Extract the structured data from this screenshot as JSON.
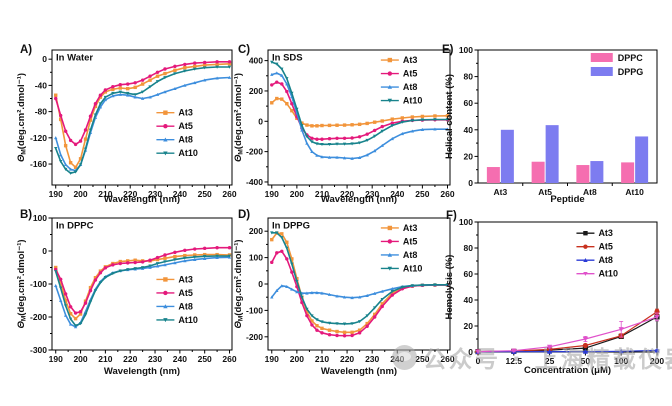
{
  "watermark": {
    "logo": "grey-circle-logo",
    "text": "公众号 · 上海精载仪器资讯"
  },
  "chart_data": [
    {
      "panel": "A",
      "label": "A)",
      "type": "line",
      "title": "In Water",
      "x": {
        "label": "Wavelength (nm)",
        "min": 188.5,
        "max": 261,
        "ticks": [
          190,
          200,
          210,
          220,
          230,
          240,
          250,
          260
        ],
        "values": [
          190,
          192,
          194,
          196,
          198,
          200,
          202,
          204,
          206,
          208,
          210,
          213,
          216,
          219,
          222,
          225,
          228,
          231,
          234,
          238,
          242,
          246,
          250,
          255,
          260
        ]
      },
      "y": {
        "label_parts": {
          "sym": "Θ",
          "sub": "M",
          "units": "(deg.cm².dmol⁻¹)"
        },
        "min": -192,
        "max": 14,
        "ticks": [
          0,
          -40,
          -80,
          -120,
          -160
        ]
      },
      "legend": {
        "fx": 0.58,
        "fy": 0.42
      },
      "series": [
        {
          "name": "At3",
          "color": "#F2953B",
          "marker": "square",
          "values": [
            -55,
            -92,
            -132,
            -158,
            -165,
            -152,
            -122,
            -93,
            -72,
            -58,
            -50,
            -46,
            -44,
            -45,
            -43,
            -38,
            -32,
            -26,
            -22,
            -17,
            -13,
            -11,
            -9,
            -8,
            -7
          ]
        },
        {
          "name": "At5",
          "color": "#E4197B",
          "marker": "circle",
          "values": [
            -60,
            -86,
            -110,
            -124,
            -130,
            -125,
            -108,
            -87,
            -68,
            -55,
            -47,
            -42,
            -39,
            -38,
            -36,
            -32,
            -26,
            -20,
            -15,
            -11,
            -8,
            -6,
            -5,
            -4,
            -4
          ]
        },
        {
          "name": "At8",
          "color": "#3D8EDD",
          "marker": "triangle",
          "values": [
            -120,
            -146,
            -161,
            -168,
            -170,
            -161,
            -139,
            -112,
            -89,
            -73,
            -62,
            -56,
            -54,
            -55,
            -58,
            -60,
            -58,
            -54,
            -50,
            -45,
            -40,
            -36,
            -32,
            -29,
            -28
          ]
        },
        {
          "name": "At10",
          "color": "#18838C",
          "marker": "tridown",
          "values": [
            -136,
            -156,
            -168,
            -174,
            -172,
            -161,
            -137,
            -108,
            -85,
            -68,
            -58,
            -52,
            -50,
            -52,
            -54,
            -50,
            -42,
            -34,
            -28,
            -22,
            -18,
            -15,
            -13,
            -12,
            -12
          ]
        }
      ]
    },
    {
      "panel": "B",
      "label": "B)",
      "type": "line",
      "title": "In DPPC",
      "x": {
        "label": "Wavelength (nm)",
        "min": 188.5,
        "max": 261,
        "ticks": [
          190,
          200,
          210,
          220,
          230,
          240,
          250,
          260
        ],
        "values": [
          190,
          192,
          194,
          196,
          198,
          200,
          202,
          204,
          206,
          208,
          210,
          213,
          216,
          219,
          222,
          225,
          228,
          231,
          234,
          238,
          242,
          246,
          250,
          255,
          260
        ]
      },
      "y": {
        "label_parts": {
          "sym": "Θ",
          "sub": "M",
          "units": "(deg.cm².dmol⁻¹)"
        },
        "min": -300,
        "max": 100,
        "ticks": [
          100,
          0,
          -100,
          -200,
          -300
        ]
      },
      "legend": {
        "fx": 0.58,
        "fy": 0.42
      },
      "series": [
        {
          "name": "At3",
          "color": "#F2953B",
          "marker": "square",
          "values": [
            -50,
            -96,
            -150,
            -190,
            -205,
            -191,
            -152,
            -111,
            -81,
            -61,
            -48,
            -38,
            -32,
            -30,
            -28,
            -30,
            -30,
            -26,
            -22,
            -17,
            -14,
            -12,
            -11,
            -11,
            -12
          ]
        },
        {
          "name": "At5",
          "color": "#E4197B",
          "marker": "circle",
          "values": [
            -56,
            -86,
            -130,
            -169,
            -188,
            -184,
            -158,
            -120,
            -88,
            -66,
            -51,
            -42,
            -38,
            -36,
            -35,
            -33,
            -28,
            -20,
            -12,
            -4,
            2,
            6,
            8,
            10,
            10
          ]
        },
        {
          "name": "At8",
          "color": "#3D8EDD",
          "marker": "triangle",
          "values": [
            -105,
            -150,
            -195,
            -222,
            -230,
            -217,
            -184,
            -148,
            -116,
            -93,
            -78,
            -66,
            -60,
            -57,
            -55,
            -53,
            -50,
            -46,
            -42,
            -36,
            -30,
            -26,
            -23,
            -20,
            -19
          ]
        },
        {
          "name": "At10",
          "color": "#18838C",
          "marker": "tridown",
          "values": [
            -62,
            -112,
            -166,
            -206,
            -226,
            -220,
            -193,
            -154,
            -120,
            -96,
            -80,
            -68,
            -60,
            -56,
            -53,
            -50,
            -45,
            -38,
            -32,
            -26,
            -21,
            -18,
            -16,
            -15,
            -15
          ]
        }
      ]
    },
    {
      "panel": "C",
      "label": "C)",
      "type": "line",
      "title": "In SDS",
      "x": {
        "label": "Wavelength (nm)",
        "min": 188.5,
        "max": 261,
        "ticks": [
          190,
          200,
          210,
          220,
          230,
          240,
          250,
          260
        ],
        "values": [
          190,
          192,
          194,
          196,
          198,
          200,
          202,
          204,
          206,
          208,
          210,
          213,
          216,
          219,
          222,
          225,
          228,
          231,
          234,
          238,
          242,
          246,
          250,
          255,
          260
        ]
      },
      "y": {
        "label_parts": {
          "sym": "Θ",
          "sub": "M",
          "units": "(deg.cm².dmol⁻¹)"
        },
        "min": -420,
        "max": 470,
        "ticks": [
          400,
          200,
          0,
          -200,
          -400
        ]
      },
      "legend": {
        "fx": 0.62,
        "fy": 0.03
      },
      "series": [
        {
          "name": "At3",
          "color": "#F2953B",
          "marker": "square",
          "values": [
            122,
            150,
            146,
            116,
            70,
            20,
            -12,
            -25,
            -30,
            -30,
            -28,
            -27,
            -26,
            -25,
            -23,
            -20,
            -14,
            -6,
            2,
            14,
            22,
            28,
            32,
            35,
            36
          ]
        },
        {
          "name": "At5",
          "color": "#E4197B",
          "marker": "circle",
          "values": [
            240,
            258,
            246,
            196,
            116,
            30,
            -45,
            -90,
            -112,
            -118,
            -118,
            -115,
            -112,
            -112,
            -110,
            -102,
            -85,
            -60,
            -35,
            -12,
            0,
            6,
            8,
            10,
            10
          ]
        },
        {
          "name": "At8",
          "color": "#3D8EDD",
          "marker": "triangle",
          "values": [
            308,
            318,
            302,
            246,
            162,
            55,
            -58,
            -145,
            -200,
            -225,
            -235,
            -238,
            -238,
            -242,
            -245,
            -240,
            -222,
            -195,
            -160,
            -115,
            -82,
            -65,
            -55,
            -52,
            -52
          ]
        },
        {
          "name": "At10",
          "color": "#18838C",
          "marker": "tridown",
          "values": [
            390,
            378,
            345,
            282,
            186,
            80,
            -28,
            -100,
            -135,
            -148,
            -152,
            -152,
            -150,
            -150,
            -148,
            -142,
            -125,
            -98,
            -65,
            -28,
            -5,
            5,
            10,
            12,
            12
          ]
        }
      ]
    },
    {
      "panel": "D",
      "label": "D)",
      "type": "line",
      "title": "In DPPG",
      "x": {
        "label": "Wavelength (nm)",
        "min": 188.5,
        "max": 261,
        "ticks": [
          190,
          200,
          210,
          220,
          230,
          240,
          250,
          260
        ],
        "values": [
          190,
          192,
          194,
          196,
          198,
          200,
          202,
          204,
          206,
          208,
          210,
          213,
          216,
          219,
          222,
          225,
          228,
          231,
          234,
          238,
          242,
          246,
          250,
          255,
          260
        ]
      },
      "y": {
        "label_parts": {
          "sym": "Θ",
          "sub": "M",
          "units": "(deg.cm².dmol⁻¹)"
        },
        "min": -250,
        "max": 250,
        "ticks": [
          200,
          100,
          0,
          -100,
          -200
        ]
      },
      "legend": {
        "fx": 0.62,
        "fy": 0.03
      },
      "series": [
        {
          "name": "At3",
          "color": "#F2953B",
          "marker": "square",
          "values": [
            168,
            193,
            190,
            158,
            95,
            20,
            -50,
            -105,
            -140,
            -158,
            -168,
            -175,
            -180,
            -183,
            -183,
            -175,
            -150,
            -115,
            -75,
            -35,
            -15,
            -8,
            -5,
            -4,
            -4
          ]
        },
        {
          "name": "At5",
          "color": "#E4197B",
          "marker": "circle",
          "values": [
            82,
            118,
            124,
            95,
            45,
            -10,
            -70,
            -120,
            -155,
            -175,
            -185,
            -192,
            -195,
            -196,
            -195,
            -185,
            -160,
            -125,
            -85,
            -42,
            -18,
            -8,
            -5,
            -4,
            -4
          ]
        },
        {
          "name": "At8",
          "color": "#3D8EDD",
          "marker": "triangle",
          "values": [
            -50,
            -25,
            -7,
            -10,
            -20,
            -30,
            -35,
            -35,
            -33,
            -33,
            -35,
            -40,
            -46,
            -50,
            -52,
            -50,
            -44,
            -36,
            -28,
            -18,
            -10,
            -6,
            -4,
            -3,
            -3
          ]
        },
        {
          "name": "At10",
          "color": "#18838C",
          "marker": "tridown",
          "values": [
            194,
            194,
            176,
            136,
            76,
            10,
            -50,
            -95,
            -120,
            -135,
            -143,
            -148,
            -150,
            -151,
            -150,
            -142,
            -120,
            -90,
            -58,
            -28,
            -12,
            -6,
            -4,
            -3,
            -3
          ]
        }
      ]
    },
    {
      "panel": "E",
      "label": "E)",
      "type": "bar",
      "x": {
        "label": "Peptide",
        "categories": [
          "At3",
          "At5",
          "At8",
          "At10"
        ]
      },
      "y": {
        "label": "Helical content (%)",
        "min": 0,
        "max": 100,
        "ticks": [
          100,
          80,
          60,
          40,
          20,
          0
        ]
      },
      "legend": {
        "fx": 0.63,
        "fy": 0.03
      },
      "series": [
        {
          "name": "DPPC",
          "color": "#F56EB0",
          "values": [
            12,
            16,
            13.5,
            15.5
          ]
        },
        {
          "name": "DPPG",
          "color": "#7D7CF0",
          "values": [
            40,
            43.5,
            16.5,
            35
          ]
        }
      ]
    },
    {
      "panel": "F",
      "label": "F)",
      "type": "line",
      "x": {
        "label": "Concentration (μM)",
        "categories": [
          "0",
          "12.5",
          "25",
          "50",
          "100",
          "200"
        ]
      },
      "y": {
        "label": "Hemolysis (%)",
        "min": 0,
        "max": 100,
        "ticks": [
          100,
          80,
          60,
          40,
          20,
          0
        ]
      },
      "legend": {
        "fx": 0.55,
        "fy": 0.04
      },
      "lw": 1.2,
      "msize": 2.6,
      "series": [
        {
          "name": "At3",
          "color": "#1A1A1A",
          "marker": "square",
          "values": [
            0.3,
            0.5,
            1.5,
            3,
            12,
            27
          ],
          "err": [
            0,
            0,
            0.5,
            1,
            1.5,
            3
          ]
        },
        {
          "name": "At5",
          "color": "#C8311F",
          "marker": "circle",
          "values": [
            0.3,
            0.7,
            2,
            5,
            12.5,
            31
          ],
          "err": [
            0,
            0,
            0.5,
            1,
            1.5,
            2
          ]
        },
        {
          "name": "At8",
          "color": "#2B3BD6",
          "marker": "triangle",
          "values": [
            0.2,
            0.2,
            0.3,
            0.3,
            0.5,
            1.2
          ],
          "err": [
            0,
            0,
            0,
            0,
            0,
            0.5
          ]
        },
        {
          "name": "At10",
          "color": "#E052CB",
          "marker": "tridown",
          "values": [
            0.3,
            1,
            4,
            10,
            17.5,
            27
          ],
          "err": [
            0,
            0.5,
            1,
            2,
            6,
            3
          ]
        }
      ]
    }
  ]
}
